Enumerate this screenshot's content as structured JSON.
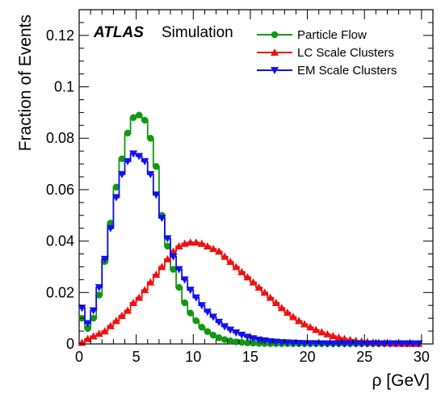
{
  "chart_data": {
    "type": "line",
    "title": "",
    "xlabel": "ρ [GeV]",
    "ylabel": "Fraction of Events",
    "xlim": [
      0,
      31
    ],
    "ylim": [
      0,
      0.13
    ],
    "x_ticks": [
      "0",
      "5",
      "10",
      "15",
      "20",
      "25",
      "30"
    ],
    "y_ticks": [
      "0",
      "0.02",
      "0.04",
      "0.06",
      "0.08",
      "0.1",
      "0.12"
    ],
    "x_tick_values": [
      0,
      5,
      10,
      15,
      20,
      25,
      30
    ],
    "y_tick_values": [
      0,
      0.02,
      0.04,
      0.06,
      0.08,
      0.1,
      0.12
    ],
    "annotation": {
      "brand": "ATLAS",
      "text": "Simulation"
    },
    "legend_position": "top-right",
    "bin_width": 0.5,
    "x": [
      0.25,
      0.75,
      1.25,
      1.75,
      2.25,
      2.75,
      3.25,
      3.75,
      4.25,
      4.75,
      5.25,
      5.75,
      6.25,
      6.75,
      7.25,
      7.75,
      8.25,
      8.75,
      9.25,
      9.75,
      10.25,
      10.75,
      11.25,
      11.75,
      12.25,
      12.75,
      13.25,
      13.75,
      14.25,
      14.75,
      15.25,
      15.75,
      16.25,
      16.75,
      17.25,
      17.75,
      18.25,
      18.75,
      19.25,
      19.75,
      20.25,
      20.75,
      21.25,
      21.75,
      22.25,
      22.75,
      23.25,
      23.75,
      24.25,
      24.75,
      25.25,
      25.75,
      26.25,
      26.75,
      27.25,
      27.75,
      28.25,
      28.75,
      29.25,
      29.75
    ],
    "series": [
      {
        "name": "Particle Flow",
        "color": "#119911",
        "marker": "circle",
        "values": [
          0.01,
          0.006,
          0.01,
          0.019,
          0.032,
          0.047,
          0.061,
          0.072,
          0.082,
          0.088,
          0.089,
          0.087,
          0.08,
          0.069,
          0.05,
          0.038,
          0.029,
          0.022,
          0.016,
          0.012,
          0.009,
          0.0065,
          0.0048,
          0.0034,
          0.0024,
          0.0017,
          0.0012,
          0.0008,
          0.0006,
          0.0004,
          0.0003,
          0.0002,
          0.00015,
          0.0001,
          0.0001,
          0.0001,
          0.0001,
          0.0001,
          0.0001,
          0.0001,
          0.0001,
          0.0001,
          0.0001,
          0.0001,
          0.0001,
          0.0001,
          0.0001,
          0.0001,
          0.0001,
          0.0001,
          0.0001,
          0.0001,
          0.0001,
          0.0001,
          0.0001,
          0.0001,
          0.0001,
          0.0001,
          0.0001,
          0.0001
        ]
      },
      {
        "name": "LC Scale Clusters",
        "color": "#ee1111",
        "marker": "triangle-up",
        "values": [
          0.0005,
          0.002,
          0.003,
          0.004,
          0.005,
          0.007,
          0.009,
          0.011,
          0.013,
          0.016,
          0.018,
          0.021,
          0.024,
          0.027,
          0.03,
          0.033,
          0.036,
          0.038,
          0.039,
          0.0395,
          0.0395,
          0.039,
          0.038,
          0.037,
          0.036,
          0.034,
          0.032,
          0.03,
          0.028,
          0.026,
          0.024,
          0.022,
          0.02,
          0.018,
          0.016,
          0.014,
          0.0122,
          0.0105,
          0.009,
          0.0077,
          0.0065,
          0.0055,
          0.0046,
          0.0038,
          0.0031,
          0.0025,
          0.002,
          0.0016,
          0.0013,
          0.001,
          0.0008,
          0.0006,
          0.0005,
          0.0004,
          0.0003,
          0.0002,
          0.00015,
          0.0001,
          0.0001,
          0.0001
        ]
      },
      {
        "name": "EM Scale Clusters",
        "color": "#1111ee",
        "marker": "triangle-down",
        "values": [
          0.014,
          0.008,
          0.013,
          0.022,
          0.033,
          0.045,
          0.057,
          0.066,
          0.071,
          0.074,
          0.073,
          0.071,
          0.066,
          0.058,
          0.049,
          0.041,
          0.034,
          0.029,
          0.025,
          0.021,
          0.018,
          0.015,
          0.0125,
          0.0105,
          0.0085,
          0.0068,
          0.0055,
          0.0044,
          0.0035,
          0.0027,
          0.0021,
          0.0016,
          0.0013,
          0.001,
          0.0008,
          0.0006,
          0.0005,
          0.0004,
          0.0003,
          0.00025,
          0.0002,
          0.0002,
          0.00015,
          0.0001,
          0.0001,
          0.0001,
          0.0001,
          0.0001,
          0.0001,
          0.0001,
          0.0001,
          0.0001,
          0.0001,
          0.0001,
          0.0001,
          0.0001,
          0.0001,
          0.0001,
          0.0001,
          0.0001
        ]
      }
    ]
  }
}
